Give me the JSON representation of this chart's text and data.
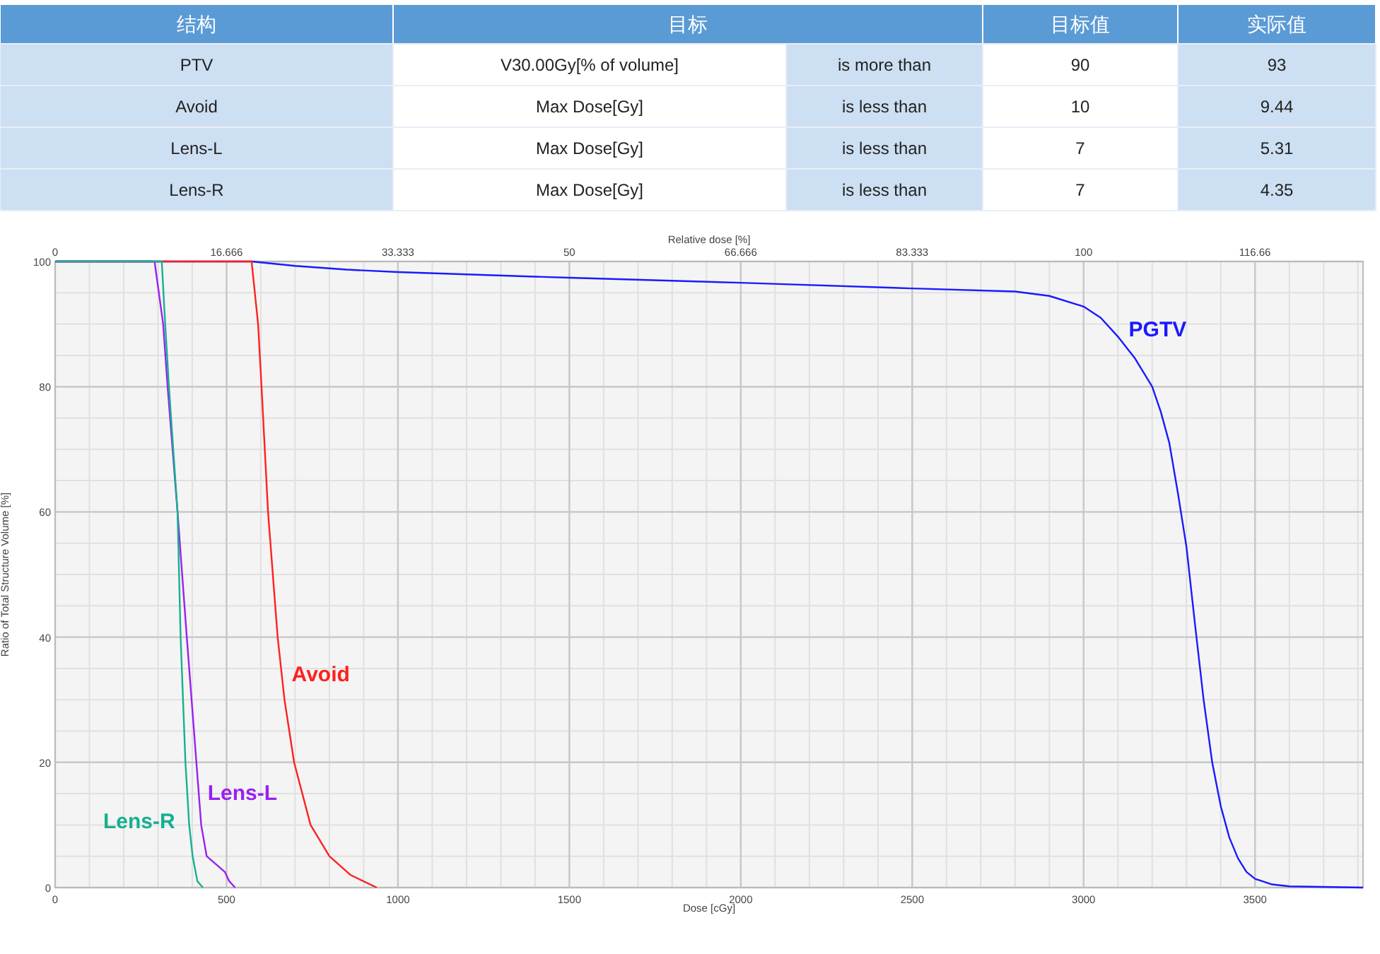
{
  "chart_data": [
    {
      "type": "other",
      "categories": [
        "结构",
        "目标",
        "目标值",
        "实际值"
      ],
      "cell_labels": [
        [
          "PTV",
          "V30.00Gy[% of volume]",
          "is more than",
          "90",
          "93"
        ],
        [
          "Avoid",
          "Max Dose[Gy]",
          "is less than",
          "10",
          "9.44"
        ],
        [
          "Lens-L",
          "Max Dose[Gy]",
          "is less than",
          "7",
          "5.31"
        ],
        [
          "Lens-R",
          "Max Dose[Gy]",
          "is less than",
          "7",
          "4.35"
        ]
      ]
    },
    {
      "type": "line",
      "xlabel": "Dose [cGy]",
      "x2label": "Relative dose [%]",
      "ylabel": "Ratio of Total Structure Volume [%]",
      "xlim": [
        0,
        3815
      ],
      "xticks": [
        0,
        500,
        1000,
        1500,
        2000,
        2500,
        3000,
        3500
      ],
      "x2lim": [
        0,
        127.17
      ],
      "x2ticks": [
        0,
        16.666,
        33.333,
        50,
        66.666,
        83.333,
        100,
        116.66
      ],
      "ylim": [
        0,
        100
      ],
      "yticks": [
        0,
        20,
        40,
        60,
        80,
        100
      ],
      "grid": true,
      "series": [
        {
          "name": "PGTV",
          "color": "#1a1aff",
          "x": [
            0,
            573,
            700,
            850,
            1000,
            1500,
            2000,
            2500,
            2800,
            2900,
            3000,
            3050,
            3100,
            3150,
            3200,
            3225,
            3250,
            3275,
            3300,
            3325,
            3350,
            3375,
            3400,
            3425,
            3450,
            3475,
            3500,
            3550,
            3600,
            3815
          ],
          "values": [
            100,
            100,
            99.3,
            98.7,
            98.3,
            97.4,
            96.6,
            95.7,
            95.2,
            94.5,
            92.8,
            91,
            88,
            84.5,
            80,
            76,
            71,
            63,
            54.4,
            42,
            30,
            20,
            13,
            8,
            4.7,
            2.5,
            1.4,
            0.5,
            0.2,
            0
          ]
        },
        {
          "name": "Avoid",
          "color": "#ff2020",
          "x": [
            0,
            573,
            592,
            602,
            621,
            649,
            669,
            697,
            745,
            800,
            862,
            938
          ],
          "values": [
            100,
            100,
            90,
            80,
            60,
            40,
            30,
            20,
            10,
            5,
            2,
            0
          ]
        },
        {
          "name": "Lens-L",
          "color": "#9a20f0",
          "x": [
            0,
            290,
            315,
            328,
            357,
            384,
            412,
            426,
            442,
            495,
            508,
            525
          ],
          "values": [
            100,
            100,
            90,
            80,
            60,
            40,
            20,
            10,
            5,
            2.5,
            1,
            0
          ]
        },
        {
          "name": "Lens-R",
          "color": "#16b090",
          "x": [
            0,
            311,
            321,
            332,
            357,
            366,
            380,
            391,
            401,
            415,
            431
          ],
          "values": [
            100,
            100,
            90,
            80,
            60,
            40,
            20,
            10,
            5,
            1,
            0
          ]
        }
      ]
    }
  ]
}
